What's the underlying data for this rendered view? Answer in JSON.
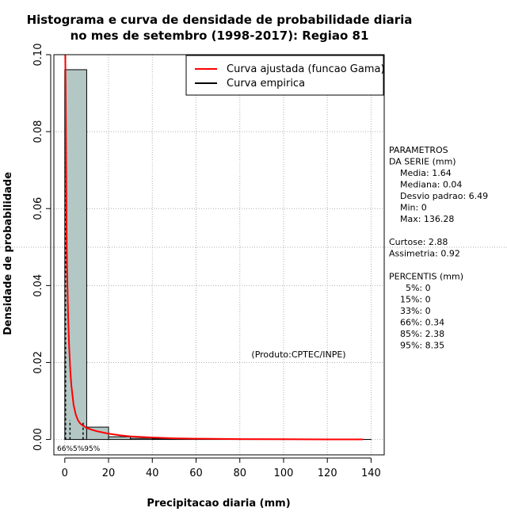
{
  "chart_data": {
    "type": "bar",
    "title_line1": "Histograma e curva de densidade de probabilidade diaria",
    "title_line2": "no mes de setembro (1998-2017): Regiao 81",
    "xlabel": "Precipitacao diaria (mm)",
    "ylabel": "Densidade de probabilidade",
    "xlim": [
      -5,
      146
    ],
    "ylim": [
      -0.004,
      0.1
    ],
    "x_ticks": [
      0,
      20,
      40,
      60,
      80,
      100,
      120,
      140
    ],
    "y_ticks": [
      0.0,
      0.02,
      0.04,
      0.06,
      0.08,
      0.1
    ],
    "x_tick_labels": [
      "0",
      "20",
      "40",
      "60",
      "80",
      "100",
      "120",
      "140"
    ],
    "y_tick_labels": [
      "0.00",
      "0.02",
      "0.04",
      "0.06",
      "0.08",
      "0.10"
    ],
    "bins": [
      {
        "x0": 0,
        "x1": 10,
        "density": 0.0961
      },
      {
        "x0": 10,
        "x1": 20,
        "density": 0.0032
      },
      {
        "x0": 20,
        "x1": 30,
        "density": 0.0007
      },
      {
        "x0": 30,
        "x1": 40,
        "density": 0.0003
      },
      {
        "x0": 40,
        "x1": 50,
        "density": 0.0002
      },
      {
        "x0": 50,
        "x1": 60,
        "density": 0.0001
      },
      {
        "x0": 60,
        "x1": 70,
        "density": 5e-05
      },
      {
        "x0": 70,
        "x1": 80,
        "density": 3e-05
      },
      {
        "x0": 80,
        "x1": 90,
        "density": 2e-05
      },
      {
        "x0": 90,
        "x1": 100,
        "density": 1e-05
      },
      {
        "x0": 100,
        "x1": 110,
        "density": 1e-05
      },
      {
        "x0": 110,
        "x1": 120,
        "density": 1e-05
      },
      {
        "x0": 120,
        "x1": 130,
        "density": 1e-05
      },
      {
        "x0": 130,
        "x1": 140,
        "density": 1e-05
      }
    ],
    "series": [
      {
        "name": "Curva ajustada (funcao Gama)",
        "color": "#ff0000",
        "x": [
          0.2,
          0.4,
          0.6,
          0.8,
          1,
          1.5,
          2,
          2.5,
          3,
          4,
          5,
          6,
          7,
          8,
          10,
          12,
          15,
          20,
          25,
          30,
          40,
          50,
          60,
          80,
          100,
          120,
          136.28
        ],
        "y": [
          0.1,
          0.09,
          0.07,
          0.055,
          0.045,
          0.032,
          0.024,
          0.018,
          0.014,
          0.009,
          0.0065,
          0.005,
          0.0042,
          0.0037,
          0.003,
          0.0026,
          0.0021,
          0.0015,
          0.0011,
          0.0008,
          0.0005,
          0.0003,
          0.0002,
          0.0001,
          5e-05,
          2e-05,
          1e-05
        ]
      },
      {
        "name": "Curva empirica",
        "color": "#000000",
        "x": [],
        "y": []
      }
    ],
    "percentile_lines": [
      {
        "label": "66%",
        "value": 0.34
      },
      {
        "label": "85%",
        "value": 2.38
      },
      {
        "label": "95%",
        "value": 8.35
      }
    ],
    "percentile_label_text": "66%5%95%",
    "stats_lines": [
      "PARAMETROS",
      "DA SERIE (mm)",
      "  Media: 1.64",
      "  Mediana: 0.04",
      "  Desvio padrao: 6.49",
      "  Min: 0",
      "  Max: 136.28",
      "",
      "Curtose: 2.88",
      "Assimetria: 0.92",
      "",
      "PERCENTIS (mm)",
      "   5%: 0",
      "  15%: 0",
      "  33%: 0",
      "  66%: 0.34",
      "  85%: 2.38",
      "  95%: 8.35"
    ],
    "credit": "(Produto:CPTEC/INPE)",
    "legend_position": "top-right",
    "grid": true
  },
  "colors": {
    "bar_fill": "#b3c8c5",
    "grid": "#b0b0b0",
    "fit_curve": "#ff0000"
  }
}
